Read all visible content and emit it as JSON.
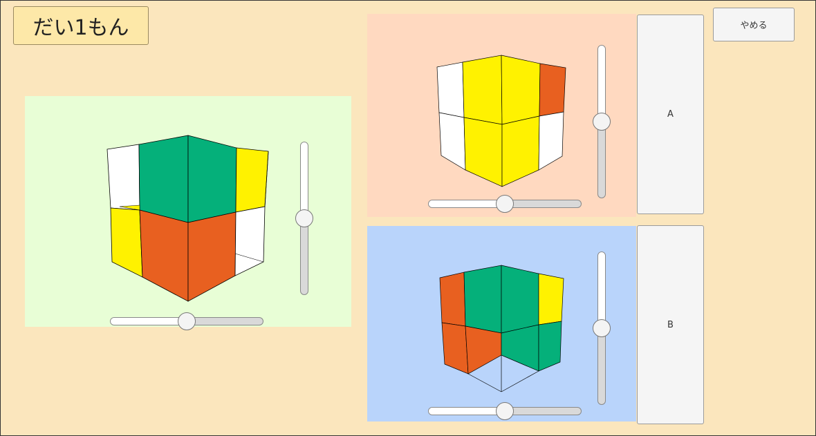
{
  "title": "だい1もん",
  "buttons": {
    "a": "A",
    "b": "B",
    "quit": "やめる"
  },
  "colors": {
    "green": "#05b07a",
    "yellow": "#fff200",
    "orange": "#e86020",
    "white": "#ffffff"
  },
  "panels": {
    "main": {
      "background": "#e8fed6",
      "h_slider_value": 0.5,
      "v_slider_value": 0.5
    },
    "a": {
      "background": "#ffd9c0",
      "h_slider_value": 0.5,
      "v_slider_value": 0.5
    },
    "b": {
      "background": "#b9d4fb",
      "h_slider_value": 0.5,
      "v_slider_value": 0.5
    }
  }
}
